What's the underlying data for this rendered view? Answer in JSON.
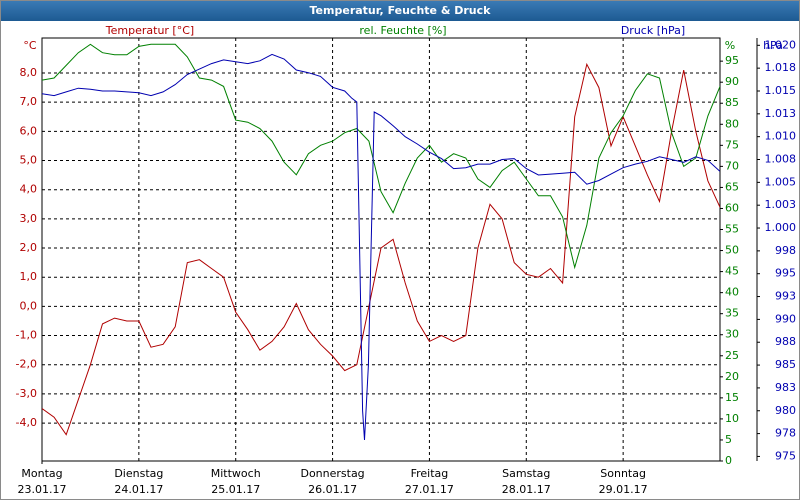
{
  "chart_data": {
    "type": "line",
    "title": "Temperatur, Feuchte & Druck",
    "x": [
      0,
      0.125,
      0.25,
      0.375,
      0.5,
      0.625,
      0.75,
      0.875,
      1,
      1.125,
      1.25,
      1.375,
      1.5,
      1.625,
      1.75,
      1.875,
      2,
      2.125,
      2.25,
      2.375,
      2.5,
      2.625,
      2.75,
      2.875,
      3,
      3.125,
      3.25,
      3.375,
      3.5,
      3.625,
      3.75,
      3.875,
      4,
      4.125,
      4.25,
      4.375,
      4.5,
      4.625,
      4.75,
      4.875,
      5,
      5.125,
      5.25,
      5.375,
      5.5,
      5.625,
      5.75,
      5.875,
      6,
      6.125,
      6.25,
      6.375,
      6.5,
      6.625,
      6.75,
      6.875,
      7
    ],
    "xlim": [
      0,
      7
    ],
    "xticks": [
      {
        "value": 0,
        "label": "Montag",
        "date": "23.01.17"
      },
      {
        "value": 1,
        "label": "Dienstag",
        "date": "24.01.17"
      },
      {
        "value": 2,
        "label": "Mittwoch",
        "date": "25.01.17"
      },
      {
        "value": 3,
        "label": "Donnerstag",
        "date": "26.01.17"
      },
      {
        "value": 4,
        "label": "Freitag",
        "date": "27.01.17"
      },
      {
        "value": 5,
        "label": "Samstag",
        "date": "28.01.17"
      },
      {
        "value": 6,
        "label": "Sonntag",
        "date": "29.01.17"
      }
    ],
    "grid": true,
    "ylim": [
      -5.3,
      9.2
    ],
    "yticks": [
      {
        "value": -4,
        "label": "-4,0"
      },
      {
        "value": -3,
        "label": "-3,0"
      },
      {
        "value": -2,
        "label": "-2,0"
      },
      {
        "value": -1,
        "label": "-1,0"
      },
      {
        "value": 0,
        "label": "0,0"
      },
      {
        "value": 1,
        "label": "1,0"
      },
      {
        "value": 2,
        "label": "2,0"
      },
      {
        "value": 3,
        "label": "3,0"
      },
      {
        "value": 4,
        "label": "4,0"
      },
      {
        "value": 5,
        "label": "5,0"
      },
      {
        "value": 6,
        "label": "6,0"
      },
      {
        "value": 7,
        "label": "7,0"
      },
      {
        "value": 8,
        "label": "8,0"
      }
    ],
    "y2lim": [
      0,
      100.5
    ],
    "y2ticks": [
      0,
      5,
      10,
      15,
      20,
      25,
      30,
      35,
      40,
      45,
      50,
      55,
      60,
      65,
      70,
      75,
      80,
      85,
      90,
      95
    ],
    "y3lim": [
      974.5,
      1020.8
    ],
    "y3ticks": [
      975,
      {
        "value": 977.5,
        "label": "978"
      },
      980,
      {
        "value": 982.5,
        "label": "983"
      },
      985,
      {
        "value": 987.5,
        "label": "988"
      },
      990,
      {
        "value": 992.5,
        "label": "993"
      },
      995,
      {
        "value": 997.5,
        "label": "998"
      },
      {
        "value": 1000,
        "label": "1.000"
      },
      {
        "value": 1002.5,
        "label": "1.003"
      },
      {
        "value": 1005,
        "label": "1.005"
      },
      {
        "value": 1007.5,
        "label": "1.008"
      },
      {
        "value": 1010,
        "label": "1.010"
      },
      {
        "value": 1012.5,
        "label": "1.013"
      },
      {
        "value": 1015,
        "label": "1.015"
      },
      {
        "value": 1017.5,
        "label": "1.018"
      },
      {
        "value": 1020,
        "label": "1.020"
      }
    ],
    "series": [
      {
        "name": "Temperatur [°C]",
        "unit": "°C",
        "axis": "y",
        "color": "#b00000",
        "values": [
          -3.5,
          -3.8,
          -4.4,
          -3.2,
          -2.0,
          -0.6,
          -0.4,
          -0.5,
          -0.5,
          -1.4,
          -1.3,
          -0.7,
          1.5,
          1.6,
          1.3,
          1.0,
          -0.2,
          -0.8,
          -1.5,
          -1.2,
          -0.7,
          0.1,
          -0.8,
          -1.3,
          -1.7,
          -2.2,
          -2.0,
          0.0,
          2.0,
          2.3,
          0.8,
          -0.5,
          -1.2,
          -1.0,
          -1.2,
          -1.0,
          2.0,
          3.5,
          3.0,
          1.5,
          1.1,
          1.0,
          1.3,
          0.8,
          6.5,
          8.3,
          7.5,
          5.5,
          6.5,
          5.5,
          4.5,
          3.6,
          6.0,
          8.1,
          6.0,
          4.3,
          3.4
        ]
      },
      {
        "name": "rel. Feuchte [%]",
        "unit": "%",
        "axis": "y2",
        "color": "#008000",
        "values": [
          90.5,
          91,
          94,
          97,
          99,
          97,
          96.5,
          96.5,
          98.5,
          99,
          99,
          99,
          96,
          91,
          90.5,
          89,
          81,
          80.5,
          79,
          76,
          71,
          68,
          73,
          75,
          76,
          78,
          79,
          76,
          64,
          59,
          66,
          72,
          75,
          71,
          73,
          72,
          67,
          65,
          69,
          71,
          67,
          63,
          63,
          58,
          46,
          56,
          72,
          78,
          82,
          88,
          92,
          91,
          78,
          70,
          72,
          82,
          89
        ]
      },
      {
        "name": "Druck [hPa]",
        "unit": "hPa",
        "axis": "y3",
        "color": "#0000b0",
        "x": [
          0,
          0.125,
          0.25,
          0.375,
          0.5,
          0.625,
          0.75,
          0.875,
          1,
          1.125,
          1.25,
          1.375,
          1.5,
          1.625,
          1.75,
          1.875,
          2,
          2.125,
          2.25,
          2.375,
          2.5,
          2.625,
          2.75,
          2.875,
          3,
          3.125,
          3.2,
          3.25,
          3.27,
          3.31,
          3.33,
          3.37,
          3.43,
          3.5,
          3.625,
          3.75,
          3.875,
          4,
          4.125,
          4.25,
          4.375,
          4.5,
          4.625,
          4.75,
          4.875,
          5,
          5.125,
          5.25,
          5.375,
          5.5,
          5.625,
          5.75,
          5.875,
          6,
          6.125,
          6.25,
          6.375,
          6.5,
          6.625,
          6.75,
          6.875,
          7
        ],
        "values": [
          1014.7,
          1014.5,
          1014.9,
          1015.3,
          1015.2,
          1015.0,
          1015.0,
          1014.9,
          1014.8,
          1014.5,
          1014.9,
          1015.7,
          1016.8,
          1017.4,
          1018.0,
          1018.4,
          1018.2,
          1018.0,
          1018.3,
          1019.0,
          1018.5,
          1017.3,
          1017.0,
          1016.6,
          1015.4,
          1015.0,
          1014.2,
          1013.8,
          1003,
          980,
          976.8,
          985,
          1012.7,
          1012.3,
          1011.2,
          1010.0,
          1009.2,
          1008.3,
          1007.6,
          1006.5,
          1006.6,
          1007.0,
          1007.0,
          1007.5,
          1007.6,
          1006.5,
          1005.8,
          1005.9,
          1006.0,
          1006.1,
          1004.8,
          1005.2,
          1005.9,
          1006.6,
          1007.0,
          1007.3,
          1007.8,
          1007.5,
          1007.2,
          1007.8,
          1007.4,
          1006.2
        ]
      }
    ]
  }
}
